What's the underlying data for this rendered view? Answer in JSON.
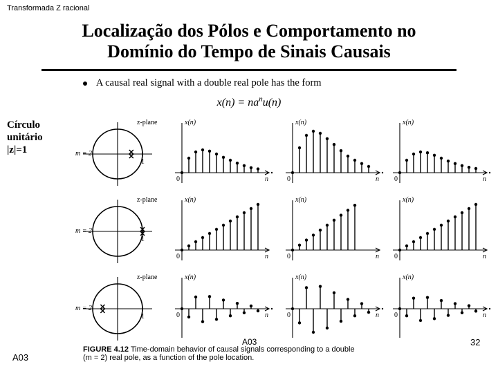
{
  "header_small": "Transformada Z racional",
  "title_line1": "Localização dos Pólos e Comportamento no",
  "title_line2": "Domínio do Tempo de Sinais Causais",
  "intro": "A causal real signal with a double real pole has the form",
  "formula_html": "x(n) = na<sup>n</sup>u(n)",
  "sidebar_l1": "Círculo",
  "sidebar_l2": "unitário",
  "sidebar_l3": "|z|=1",
  "zplane_label": "z-plane",
  "m_label": "m = 2",
  "x_axis_one": "1",
  "xn_label": "x(n)",
  "n_label": "n",
  "zero_label": "0",
  "caption_bold": "FIGURE 4.12",
  "caption_text": " Time-domain behavior of causal signals corresponding to a double",
  "caption_line2": "(m = 2) real pole, as a function of the pole location.",
  "a03": "A03",
  "pagenum": "32",
  "colors": {
    "ink": "#000000",
    "bg": "#ffffff"
  },
  "rows": [
    {
      "pole_x": 0.55,
      "signals": [
        {
          "samples": [
            0,
            0.35,
            0.5,
            0.55,
            0.52,
            0.45,
            0.37,
            0.3,
            0.23,
            0.17,
            0.12,
            0.09
          ],
          "ellipsis": true
        },
        {
          "samples": [
            0,
            0.6,
            0.9,
            1.0,
            0.95,
            0.82,
            0.68,
            0.53,
            0.4,
            0.3,
            0.22,
            0.15
          ],
          "ellipsis": true
        },
        {
          "samples": [
            0,
            0.3,
            0.45,
            0.5,
            0.48,
            0.42,
            0.35,
            0.28,
            0.22,
            0.17,
            0.13,
            0.1
          ],
          "ellipsis": true
        }
      ]
    },
    {
      "pole_x": 1.0,
      "signals": [
        {
          "samples": [
            0,
            0.1,
            0.2,
            0.3,
            0.4,
            0.5,
            0.6,
            0.7,
            0.8,
            0.9,
            1.0,
            1.1
          ],
          "arrow_up": true
        },
        {
          "samples": [
            0,
            0.12,
            0.24,
            0.36,
            0.48,
            0.6,
            0.72,
            0.84,
            0.96,
            1.08
          ],
          "arrow_up": true
        },
        {
          "samples": [
            0,
            0.1,
            0.2,
            0.3,
            0.4,
            0.5,
            0.6,
            0.7,
            0.8,
            0.9,
            1.0,
            1.1
          ],
          "arrow_up": true
        }
      ]
    },
    {
      "pole_x": -0.6,
      "signals": [
        {
          "samples": [
            0,
            -0.35,
            0.5,
            -0.55,
            0.52,
            -0.45,
            0.37,
            -0.3,
            0.23,
            -0.17,
            0.12,
            -0.09
          ],
          "ellipsis": true,
          "bipolar": true
        },
        {
          "samples": [
            0,
            -0.6,
            0.9,
            -1.0,
            0.95,
            -0.82,
            0.68,
            -0.53,
            0.4,
            -0.3,
            0.22,
            -0.15
          ],
          "ellipsis": true,
          "bipolar": true
        },
        {
          "samples": [
            0,
            -0.3,
            0.45,
            -0.5,
            0.48,
            -0.42,
            0.35,
            -0.28,
            0.22,
            -0.17,
            0.13,
            -0.1
          ],
          "ellipsis": true,
          "bipolar": true
        }
      ]
    }
  ],
  "style": {
    "circle_radius": 36,
    "stem_spacing": 10,
    "stem_color": "#000000",
    "stem_width": 1.4,
    "dot_radius": 2.2,
    "axis_width": 1.1
  }
}
